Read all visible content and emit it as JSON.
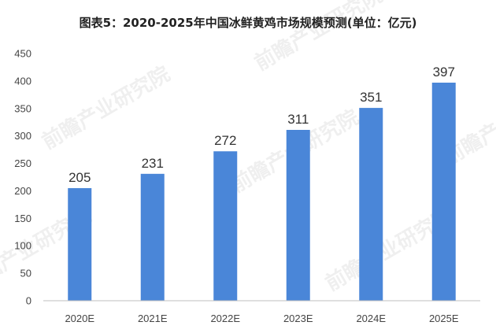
{
  "chart_data": {
    "type": "bar",
    "title": "图表5：2020-2025年中国冰鲜黄鸡市场规模预测(单位：亿元)",
    "categories": [
      "2020E",
      "2021E",
      "2022E",
      "2023E",
      "2024E",
      "2025E"
    ],
    "values": [
      205,
      231,
      272,
      311,
      351,
      397
    ],
    "ylim": [
      0,
      450
    ],
    "yticks": [
      0,
      50,
      100,
      150,
      200,
      250,
      300,
      350,
      400,
      450
    ],
    "xlabel": "",
    "ylabel": "",
    "grid": false,
    "bar_color": "#4a86d8"
  },
  "watermark": "前瞻产业研究院"
}
